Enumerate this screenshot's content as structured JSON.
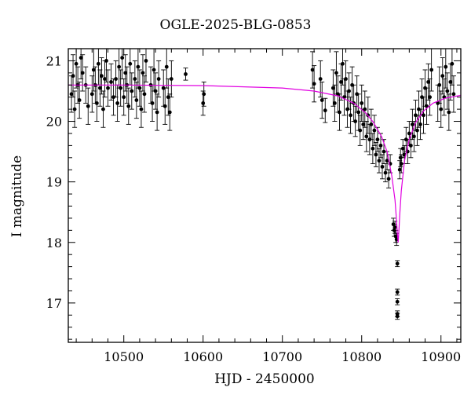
{
  "chart_data": {
    "type": "scatter",
    "title": "OGLE-2025-BLG-0853",
    "xlabel": "HJD - 2450000",
    "ylabel": "I magnitude",
    "xlim": [
      10430,
      10925
    ],
    "ylim": [
      21.2,
      16.35
    ],
    "y_inverted": true,
    "x_ticks": [
      10500,
      10600,
      10700,
      10800,
      10900
    ],
    "y_ticks": [
      17,
      18,
      19,
      20,
      21
    ],
    "grid": false,
    "colors": {
      "data": "#000000",
      "model": "#e100e1"
    },
    "model_curve": {
      "name": "",
      "baseline_mag": 20.6,
      "t0": 10846,
      "peak_mag": 18.0,
      "x": [
        10430,
        10500,
        10600,
        10700,
        10740,
        10770,
        10790,
        10805,
        10815,
        10825,
        10832,
        10838,
        10842,
        10844,
        10845,
        10846,
        10847,
        10848,
        10850,
        10854,
        10860,
        10868,
        10878,
        10890,
        10905,
        10925
      ],
      "y": [
        20.6,
        20.6,
        20.59,
        20.55,
        20.5,
        20.42,
        20.3,
        20.14,
        19.98,
        19.75,
        19.5,
        19.1,
        18.7,
        18.35,
        18.15,
        18.0,
        18.2,
        18.45,
        18.85,
        19.35,
        19.7,
        19.98,
        20.17,
        20.3,
        20.38,
        20.43
      ]
    },
    "observations": [
      {
        "x": 10434,
        "y": 20.45,
        "err": 0.3
      },
      {
        "x": 10436,
        "y": 20.75,
        "err": 0.35
      },
      {
        "x": 10438,
        "y": 20.2,
        "err": 0.3
      },
      {
        "x": 10440,
        "y": 20.95,
        "err": 0.4
      },
      {
        "x": 10442,
        "y": 20.6,
        "err": 0.3
      },
      {
        "x": 10444,
        "y": 20.35,
        "err": 0.3
      },
      {
        "x": 10446,
        "y": 21.05,
        "err": 0.35
      },
      {
        "x": 10448,
        "y": 20.8,
        "err": 0.3
      },
      {
        "x": 10452,
        "y": 20.6,
        "err": 0.3
      },
      {
        "x": 10455,
        "y": 20.25,
        "err": 0.3
      },
      {
        "x": 10460,
        "y": 20.45,
        "err": 0.3
      },
      {
        "x": 10462,
        "y": 20.85,
        "err": 0.35
      },
      {
        "x": 10464,
        "y": 20.6,
        "err": 0.3
      },
      {
        "x": 10466,
        "y": 20.3,
        "err": 0.3
      },
      {
        "x": 10468,
        "y": 20.95,
        "err": 0.35
      },
      {
        "x": 10470,
        "y": 20.55,
        "err": 0.3
      },
      {
        "x": 10472,
        "y": 20.75,
        "err": 0.3
      },
      {
        "x": 10474,
        "y": 20.2,
        "err": 0.3
      },
      {
        "x": 10476,
        "y": 20.7,
        "err": 0.3
      },
      {
        "x": 10478,
        "y": 21.0,
        "err": 0.35
      },
      {
        "x": 10480,
        "y": 20.55,
        "err": 0.3
      },
      {
        "x": 10484,
        "y": 20.65,
        "err": 0.3
      },
      {
        "x": 10487,
        "y": 20.4,
        "err": 0.3
      },
      {
        "x": 10490,
        "y": 20.7,
        "err": 0.3
      },
      {
        "x": 10492,
        "y": 20.3,
        "err": 0.3
      },
      {
        "x": 10494,
        "y": 20.9,
        "err": 0.35
      },
      {
        "x": 10496,
        "y": 20.55,
        "err": 0.3
      },
      {
        "x": 10498,
        "y": 21.05,
        "err": 0.35
      },
      {
        "x": 10500,
        "y": 20.4,
        "err": 0.3
      },
      {
        "x": 10502,
        "y": 20.8,
        "err": 0.3
      },
      {
        "x": 10504,
        "y": 20.6,
        "err": 0.3
      },
      {
        "x": 10506,
        "y": 20.25,
        "err": 0.3
      },
      {
        "x": 10508,
        "y": 20.95,
        "err": 0.35
      },
      {
        "x": 10510,
        "y": 20.5,
        "err": 0.3
      },
      {
        "x": 10514,
        "y": 20.7,
        "err": 0.3
      },
      {
        "x": 10516,
        "y": 20.35,
        "err": 0.3
      },
      {
        "x": 10518,
        "y": 20.9,
        "err": 0.35
      },
      {
        "x": 10520,
        "y": 20.55,
        "err": 0.3
      },
      {
        "x": 10522,
        "y": 20.2,
        "err": 0.3
      },
      {
        "x": 10524,
        "y": 20.8,
        "err": 0.3
      },
      {
        "x": 10526,
        "y": 20.45,
        "err": 0.3
      },
      {
        "x": 10528,
        "y": 21.0,
        "err": 0.35
      },
      {
        "x": 10534,
        "y": 20.6,
        "err": 0.3
      },
      {
        "x": 10536,
        "y": 20.3,
        "err": 0.3
      },
      {
        "x": 10538,
        "y": 20.85,
        "err": 0.35
      },
      {
        "x": 10540,
        "y": 20.5,
        "err": 0.3
      },
      {
        "x": 10542,
        "y": 20.15,
        "err": 0.3
      },
      {
        "x": 10544,
        "y": 20.7,
        "err": 0.3
      },
      {
        "x": 10550,
        "y": 20.55,
        "err": 0.3
      },
      {
        "x": 10552,
        "y": 20.25,
        "err": 0.3
      },
      {
        "x": 10554,
        "y": 20.9,
        "err": 0.35
      },
      {
        "x": 10556,
        "y": 20.4,
        "err": 0.3
      },
      {
        "x": 10558,
        "y": 20.15,
        "err": 0.3
      },
      {
        "x": 10560,
        "y": 20.7,
        "err": 0.3
      },
      {
        "x": 10578,
        "y": 20.78,
        "err": 0.1
      },
      {
        "x": 10600,
        "y": 20.3,
        "err": 0.2
      },
      {
        "x": 10601,
        "y": 20.45,
        "err": 0.2
      },
      {
        "x": 10738,
        "y": 20.85,
        "err": 0.3
      },
      {
        "x": 10740,
        "y": 20.62,
        "err": 0.3
      },
      {
        "x": 10748,
        "y": 20.7,
        "err": 0.3
      },
      {
        "x": 10750,
        "y": 20.35,
        "err": 0.3
      },
      {
        "x": 10754,
        "y": 20.18,
        "err": 0.2
      },
      {
        "x": 10764,
        "y": 20.55,
        "err": 0.3
      },
      {
        "x": 10766,
        "y": 20.3,
        "err": 0.3
      },
      {
        "x": 10768,
        "y": 20.8,
        "err": 0.35
      },
      {
        "x": 10770,
        "y": 20.45,
        "err": 0.3
      },
      {
        "x": 10772,
        "y": 20.15,
        "err": 0.3
      },
      {
        "x": 10774,
        "y": 20.65,
        "err": 0.3
      },
      {
        "x": 10776,
        "y": 20.95,
        "err": 0.35
      },
      {
        "x": 10778,
        "y": 20.4,
        "err": 0.3
      },
      {
        "x": 10780,
        "y": 20.7,
        "err": 0.3
      },
      {
        "x": 10782,
        "y": 20.2,
        "err": 0.3
      },
      {
        "x": 10784,
        "y": 20.5,
        "err": 0.3
      },
      {
        "x": 10786,
        "y": 20.1,
        "err": 0.3
      },
      {
        "x": 10788,
        "y": 20.6,
        "err": 0.3
      },
      {
        "x": 10790,
        "y": 20.3,
        "err": 0.3
      },
      {
        "x": 10792,
        "y": 20.0,
        "err": 0.25
      },
      {
        "x": 10794,
        "y": 20.45,
        "err": 0.3
      },
      {
        "x": 10796,
        "y": 20.15,
        "err": 0.3
      },
      {
        "x": 10798,
        "y": 19.85,
        "err": 0.25
      },
      {
        "x": 10800,
        "y": 20.3,
        "err": 0.3
      },
      {
        "x": 10802,
        "y": 19.95,
        "err": 0.25
      },
      {
        "x": 10804,
        "y": 20.2,
        "err": 0.3
      },
      {
        "x": 10806,
        "y": 19.75,
        "err": 0.25
      },
      {
        "x": 10808,
        "y": 20.1,
        "err": 0.3
      },
      {
        "x": 10810,
        "y": 19.7,
        "err": 0.25
      },
      {
        "x": 10812,
        "y": 19.95,
        "err": 0.25
      },
      {
        "x": 10814,
        "y": 19.55,
        "err": 0.25
      },
      {
        "x": 10816,
        "y": 19.85,
        "err": 0.25
      },
      {
        "x": 10818,
        "y": 19.45,
        "err": 0.2
      },
      {
        "x": 10820,
        "y": 19.7,
        "err": 0.2
      },
      {
        "x": 10822,
        "y": 19.35,
        "err": 0.2
      },
      {
        "x": 10824,
        "y": 19.6,
        "err": 0.2
      },
      {
        "x": 10826,
        "y": 19.25,
        "err": 0.2
      },
      {
        "x": 10828,
        "y": 19.5,
        "err": 0.2
      },
      {
        "x": 10830,
        "y": 19.15,
        "err": 0.15
      },
      {
        "x": 10832,
        "y": 19.35,
        "err": 0.15
      },
      {
        "x": 10834,
        "y": 19.05,
        "err": 0.15
      },
      {
        "x": 10836,
        "y": 19.3,
        "err": 0.15
      },
      {
        "x": 10840,
        "y": 18.3,
        "err": 0.1
      },
      {
        "x": 10841,
        "y": 18.2,
        "err": 0.1
      },
      {
        "x": 10842,
        "y": 18.25,
        "err": 0.1
      },
      {
        "x": 10843,
        "y": 18.1,
        "err": 0.1
      },
      {
        "x": 10844,
        "y": 18.05,
        "err": 0.1
      },
      {
        "x": 10845,
        "y": 16.78,
        "err": 0.05
      },
      {
        "x": 10845,
        "y": 16.82,
        "err": 0.05
      },
      {
        "x": 10845,
        "y": 17.02,
        "err": 0.05
      },
      {
        "x": 10845,
        "y": 17.18,
        "err": 0.05
      },
      {
        "x": 10845,
        "y": 17.65,
        "err": 0.05
      },
      {
        "x": 10848,
        "y": 19.2,
        "err": 0.15
      },
      {
        "x": 10849,
        "y": 19.4,
        "err": 0.15
      },
      {
        "x": 10850,
        "y": 19.3,
        "err": 0.15
      },
      {
        "x": 10852,
        "y": 19.55,
        "err": 0.15
      },
      {
        "x": 10854,
        "y": 19.45,
        "err": 0.15
      },
      {
        "x": 10856,
        "y": 19.7,
        "err": 0.2
      },
      {
        "x": 10858,
        "y": 19.5,
        "err": 0.2
      },
      {
        "x": 10860,
        "y": 19.8,
        "err": 0.2
      },
      {
        "x": 10862,
        "y": 19.6,
        "err": 0.2
      },
      {
        "x": 10864,
        "y": 19.95,
        "err": 0.25
      },
      {
        "x": 10866,
        "y": 19.75,
        "err": 0.25
      },
      {
        "x": 10868,
        "y": 20.1,
        "err": 0.25
      },
      {
        "x": 10870,
        "y": 19.85,
        "err": 0.25
      },
      {
        "x": 10872,
        "y": 20.2,
        "err": 0.3
      },
      {
        "x": 10874,
        "y": 19.95,
        "err": 0.25
      },
      {
        "x": 10876,
        "y": 20.4,
        "err": 0.3
      },
      {
        "x": 10878,
        "y": 20.1,
        "err": 0.3
      },
      {
        "x": 10880,
        "y": 20.55,
        "err": 0.3
      },
      {
        "x": 10882,
        "y": 20.25,
        "err": 0.3
      },
      {
        "x": 10884,
        "y": 20.65,
        "err": 0.3
      },
      {
        "x": 10886,
        "y": 20.4,
        "err": 0.3
      },
      {
        "x": 10888,
        "y": 20.85,
        "err": 0.35
      },
      {
        "x": 10896,
        "y": 20.3,
        "err": 0.3
      },
      {
        "x": 10898,
        "y": 20.6,
        "err": 0.3
      },
      {
        "x": 10900,
        "y": 20.2,
        "err": 0.3
      },
      {
        "x": 10902,
        "y": 20.75,
        "err": 0.3
      },
      {
        "x": 10904,
        "y": 20.4,
        "err": 0.3
      },
      {
        "x": 10906,
        "y": 20.9,
        "err": 0.35
      },
      {
        "x": 10908,
        "y": 20.5,
        "err": 0.3
      },
      {
        "x": 10910,
        "y": 20.15,
        "err": 0.3
      },
      {
        "x": 10912,
        "y": 20.65,
        "err": 0.3
      },
      {
        "x": 10914,
        "y": 20.95,
        "err": 0.35
      },
      {
        "x": 10916,
        "y": 20.45,
        "err": 0.3
      }
    ]
  }
}
